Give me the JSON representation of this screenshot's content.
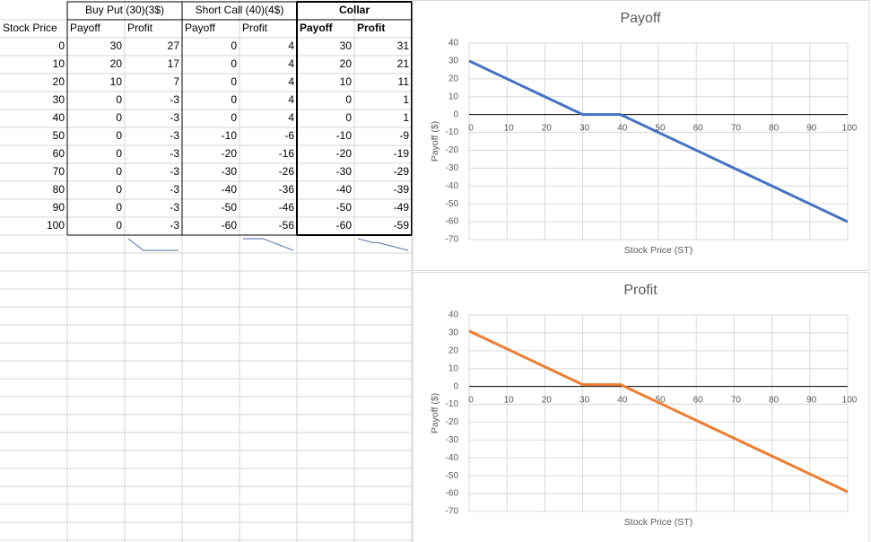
{
  "table": {
    "group_headers": [
      "Buy Put (30)(3$)",
      "Short Call (40)(4$)",
      "Collar"
    ],
    "column_headers": [
      "Stock Price",
      "Payoff",
      "Profit",
      "Payoff",
      "Profit",
      "Payoff",
      "Profit"
    ],
    "rows": [
      [
        0,
        30,
        27,
        0,
        4,
        30,
        31
      ],
      [
        10,
        20,
        17,
        0,
        4,
        20,
        21
      ],
      [
        20,
        10,
        7,
        0,
        4,
        10,
        11
      ],
      [
        30,
        0,
        -3,
        0,
        4,
        0,
        1
      ],
      [
        40,
        0,
        -3,
        0,
        4,
        0,
        1
      ],
      [
        50,
        0,
        -3,
        -10,
        -6,
        -10,
        -9
      ],
      [
        60,
        0,
        -3,
        -20,
        -16,
        -20,
        -19
      ],
      [
        70,
        0,
        -3,
        -30,
        -26,
        -30,
        -29
      ],
      [
        80,
        0,
        -3,
        -40,
        -36,
        -40,
        -39
      ],
      [
        90,
        0,
        -3,
        -50,
        -46,
        -50,
        -49
      ],
      [
        100,
        0,
        -3,
        -60,
        -56,
        -60,
        -59
      ]
    ]
  },
  "chart_data": [
    {
      "type": "line",
      "title": "Payoff",
      "x_label": "Stock Price (ST)",
      "y_label": "Payoff ($)",
      "x": [
        0,
        10,
        20,
        30,
        40,
        50,
        60,
        70,
        80,
        90,
        100
      ],
      "series": [
        {
          "color": "#4472c4",
          "values": [
            30,
            20,
            10,
            0,
            0,
            -10,
            -20,
            -30,
            -40,
            -50,
            -60
          ]
        }
      ],
      "xlim": [
        0,
        100
      ],
      "xticks": [
        0,
        10,
        20,
        30,
        40,
        50,
        60,
        70,
        80,
        90,
        100
      ],
      "ylim": [
        -70,
        40
      ],
      "yticks": [
        -70,
        -60,
        -50,
        -40,
        -30,
        -20,
        -10,
        0,
        10,
        20,
        30,
        40
      ],
      "grid": true
    },
    {
      "type": "line",
      "title": "Profit",
      "x_label": "Stock Price (ST)",
      "y_label": "Payoff ($)",
      "x": [
        0,
        10,
        20,
        30,
        40,
        50,
        60,
        70,
        80,
        90,
        100
      ],
      "series": [
        {
          "color": "#ed7d31",
          "values": [
            31,
            21,
            11,
            1,
            1,
            -9,
            -19,
            -29,
            -39,
            -49,
            -59
          ]
        }
      ],
      "xlim": [
        0,
        100
      ],
      "xticks": [
        0,
        10,
        20,
        30,
        40,
        50,
        60,
        70,
        80,
        90,
        100
      ],
      "ylim": [
        -70,
        40
      ],
      "yticks": [
        -70,
        -60,
        -50,
        -40,
        -30,
        -20,
        -10,
        0,
        10,
        20,
        30,
        40
      ],
      "grid": true
    }
  ]
}
